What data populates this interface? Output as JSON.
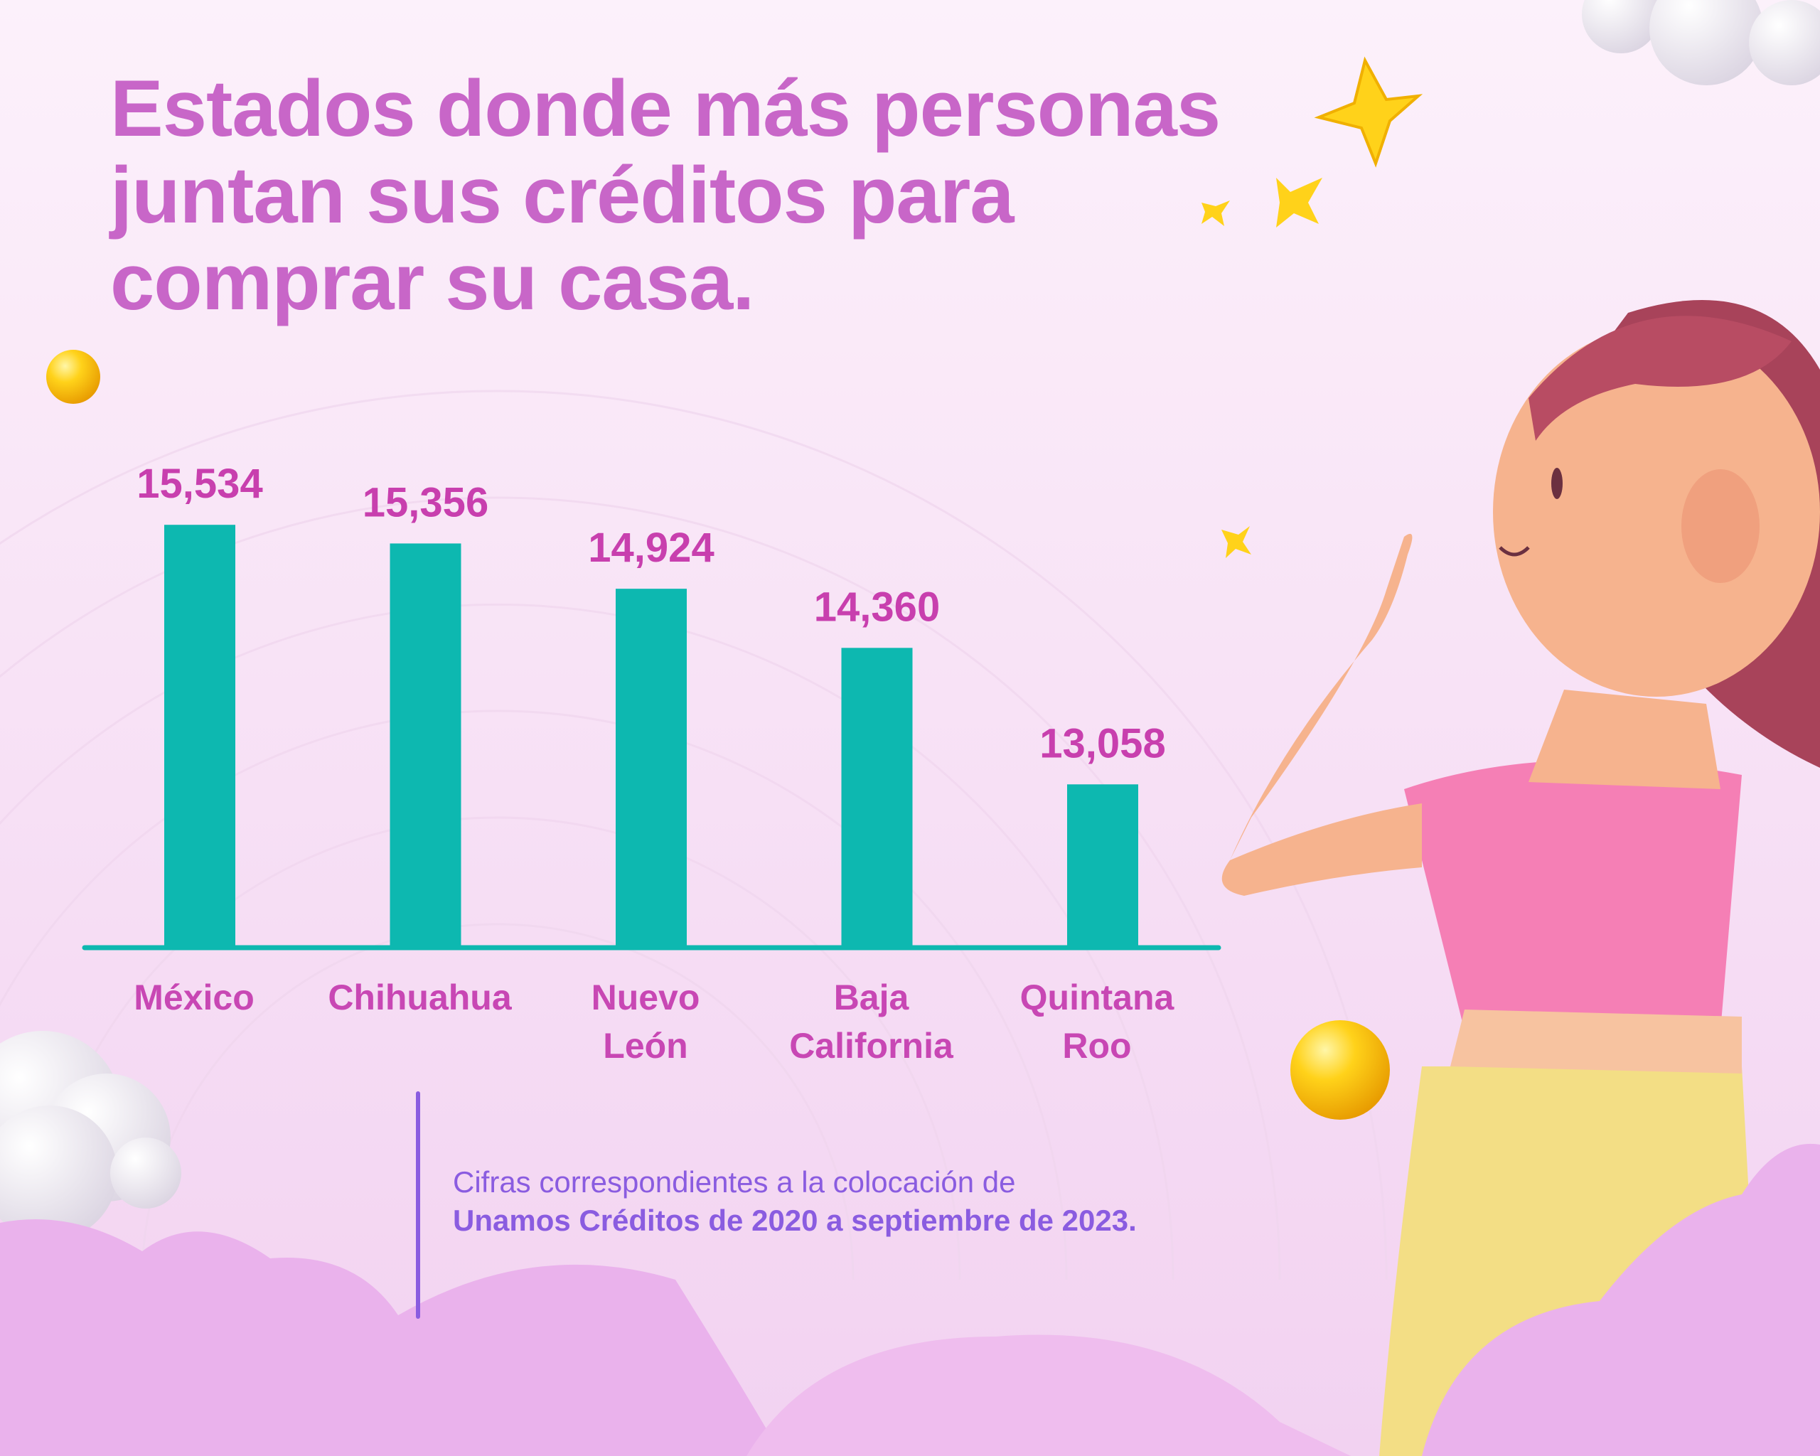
{
  "title": {
    "lines": [
      "Estados donde más personas",
      "juntan sus créditos para",
      "comprar su casa."
    ]
  },
  "chart_data": {
    "type": "bar",
    "title": "Estados donde más personas juntan sus créditos para comprar su casa.",
    "categories": [
      [
        "México"
      ],
      [
        "Chihuahua"
      ],
      [
        "Nuevo",
        "León"
      ],
      [
        "Baja",
        "California"
      ],
      [
        "Quintana",
        "Roo"
      ]
    ],
    "values": [
      15534,
      15356,
      14924,
      14360,
      13058
    ],
    "value_labels": [
      "15,534",
      "15,356",
      "14,924",
      "14,360",
      "13,058"
    ],
    "xlabel": "",
    "ylabel": "",
    "ylim": [
      11500,
      16200
    ],
    "grid": false,
    "colors": {
      "bar": "#0db8b0",
      "value_label": "#c83fae",
      "category_label": "#c847b4",
      "axis": "#0db8b0"
    }
  },
  "footnote": {
    "line1": "Cifras correspondientes a la colocación de",
    "line2": "Unamos Créditos de 2020 a septiembre de 2023."
  },
  "colors": {
    "title": "#c866c8",
    "footnote": "#8a5ce0",
    "cloud": "#eab2ec"
  }
}
